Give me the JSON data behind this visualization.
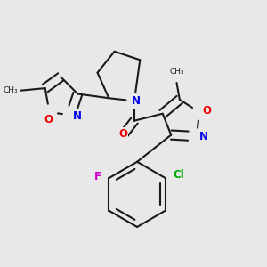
{
  "background_color": "#e8e8e8",
  "bond_color": "#1a1a1a",
  "bond_width": 1.5,
  "atom_colors": {
    "N": "#0000ee",
    "O": "#ee0000",
    "F": "#cc00cc",
    "Cl": "#00aa00",
    "C": "#1a1a1a"
  },
  "font_size_atom": 8.5,
  "figsize": [
    3.0,
    3.0
  ],
  "dpi": 100
}
